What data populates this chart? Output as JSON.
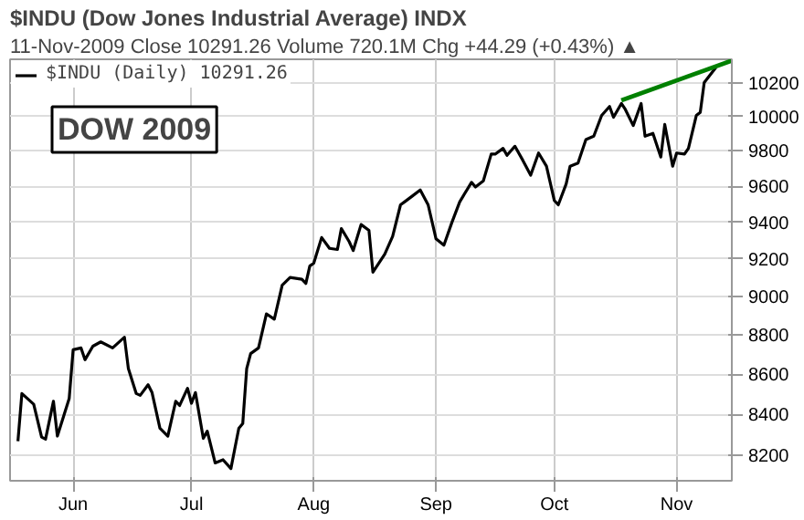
{
  "chart_data": {
    "type": "line",
    "title": "$INDU (Dow Jones Industrial Average) INDX",
    "subtitle": "11-Nov-2009  Close 10291.26  Volume 720.1M  Chg +44.29 (+0.43%) ▲",
    "annotations": [
      "DOW 2009"
    ],
    "series": [
      {
        "name": "$INDU (Daily) 10291.26",
        "color": "#000000",
        "x": [
          "2009-05-18",
          "2009-05-19",
          "2009-05-22",
          "2009-05-24",
          "2009-05-25",
          "2009-05-27",
          "2009-05-28",
          "2009-05-31",
          "2009-06-01",
          "2009-06-03",
          "2009-06-04",
          "2009-06-06",
          "2009-06-08",
          "2009-06-11",
          "2009-06-14",
          "2009-06-15",
          "2009-06-17",
          "2009-06-18",
          "2009-06-20",
          "2009-06-21",
          "2009-06-23",
          "2009-06-25",
          "2009-06-27",
          "2009-06-28",
          "2009-06-30",
          "2009-07-01",
          "2009-07-02",
          "2009-07-04",
          "2009-07-05",
          "2009-07-07",
          "2009-07-09",
          "2009-07-11",
          "2009-07-13",
          "2009-07-14",
          "2009-07-15",
          "2009-07-16",
          "2009-07-18",
          "2009-07-20",
          "2009-07-22",
          "2009-07-24",
          "2009-07-26",
          "2009-07-29",
          "2009-07-30",
          "2009-07-31",
          "2009-08-01",
          "2009-08-03",
          "2009-08-05",
          "2009-08-07",
          "2009-08-08",
          "2009-08-10",
          "2009-08-11",
          "2009-08-13",
          "2009-08-15",
          "2009-08-16",
          "2009-08-19",
          "2009-08-21",
          "2009-08-23",
          "2009-08-24",
          "2009-08-26",
          "2009-08-28",
          "2009-08-30",
          "2009-09-01",
          "2009-09-03",
          "2009-09-05",
          "2009-09-07",
          "2009-09-10",
          "2009-09-11",
          "2009-09-13",
          "2009-09-15",
          "2009-09-16",
          "2009-09-18",
          "2009-09-19",
          "2009-09-21",
          "2009-09-23",
          "2009-09-25",
          "2009-09-27",
          "2009-09-29",
          "2009-10-01",
          "2009-10-02",
          "2009-10-04",
          "2009-10-05",
          "2009-10-07",
          "2009-10-09",
          "2009-10-11",
          "2009-10-13",
          "2009-10-15",
          "2009-10-16",
          "2009-10-18",
          "2009-10-19",
          "2009-10-21",
          "2009-10-23",
          "2009-10-24",
          "2009-10-26",
          "2009-10-28",
          "2009-10-29",
          "2009-10-31",
          "2009-11-01",
          "2009-11-03",
          "2009-11-04",
          "2009-11-06",
          "2009-11-07",
          "2009-11-08",
          "2009-11-11"
        ],
        "values": [
          8269,
          8503,
          8450,
          8289,
          8279,
          8465,
          8294,
          8479,
          8724,
          8733,
          8673,
          8742,
          8764,
          8733,
          8788,
          8628,
          8503,
          8494,
          8547,
          8508,
          8332,
          8294,
          8465,
          8444,
          8529,
          8455,
          8508,
          8283,
          8318,
          8165,
          8180,
          8138,
          8332,
          8355,
          8628,
          8704,
          8733,
          8909,
          8881,
          9060,
          9101,
          9091,
          9069,
          9162,
          9177,
          9316,
          9257,
          9251,
          9365,
          9293,
          9245,
          9387,
          9355,
          9129,
          9226,
          9322,
          9496,
          9512,
          9545,
          9579,
          9496,
          9309,
          9274,
          9397,
          9512,
          9622,
          9595,
          9630,
          9782,
          9782,
          9815,
          9775,
          9827,
          9747,
          9662,
          9788,
          9713,
          9520,
          9496,
          9613,
          9713,
          9731,
          9866,
          9885,
          10006,
          10058,
          9995,
          10076,
          10041,
          9947,
          10076,
          9885,
          9901,
          9765,
          9953,
          9713,
          9788,
          9782,
          9815,
          10006,
          10024,
          10200,
          10291.26
        ]
      },
      {
        "color": "#008000",
        "x": [
          "2009-10-18",
          "2009-11-15"
        ],
        "values": [
          10094,
          10332
        ]
      }
    ],
    "xlim": [
      "2009-05-16",
      "2009-11-15"
    ],
    "xticks": [
      {
        "value": "2009-06-01",
        "label": "Jun"
      },
      {
        "value": "2009-07-01",
        "label": "Jul"
      },
      {
        "value": "2009-08-01",
        "label": "Aug"
      },
      {
        "value": "2009-09-01",
        "label": "Sep"
      },
      {
        "value": "2009-10-01",
        "label": "Oct"
      },
      {
        "value": "2009-11-01",
        "label": "Nov"
      }
    ],
    "ylim": [
      8080,
      10340
    ],
    "yticks": [
      8200,
      8400,
      8600,
      8800,
      9000,
      9200,
      9400,
      9600,
      9800,
      10000,
      10200
    ],
    "log": "y",
    "grid": true,
    "legend": "top left",
    "line_style": "solid",
    "marker": "none"
  }
}
